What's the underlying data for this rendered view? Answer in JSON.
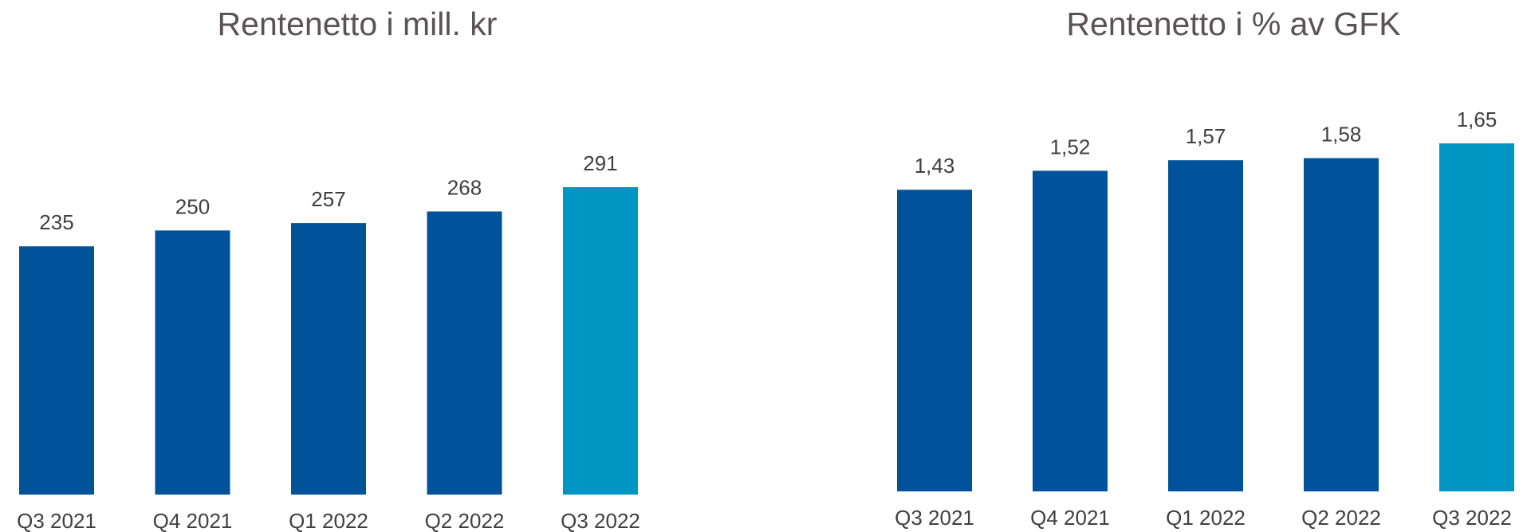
{
  "chart_data": [
    {
      "type": "bar",
      "title": "Rentenetto i mill. kr",
      "categories": [
        "Q3 2021",
        "Q4 2021",
        "Q1 2022",
        "Q2 2022",
        "Q3 2022"
      ],
      "values": [
        235,
        250,
        257,
        268,
        291
      ],
      "colors": [
        "#00539b",
        "#00539b",
        "#00539b",
        "#00539b",
        "#0096c3"
      ]
    },
    {
      "type": "bar",
      "title": "Rentenetto i % av GFK",
      "categories": [
        "Q3 2021",
        "Q4 2021",
        "Q1 2022",
        "Q2 2022",
        "Q3 2022"
      ],
      "values": [
        1.43,
        1.52,
        1.57,
        1.58,
        1.65
      ],
      "value_labels": [
        "1,43",
        "1,52",
        "1,57",
        "1,58",
        "1,65"
      ],
      "colors": [
        "#00539b",
        "#00539b",
        "#00539b",
        "#00539b",
        "#0096c3"
      ]
    }
  ]
}
